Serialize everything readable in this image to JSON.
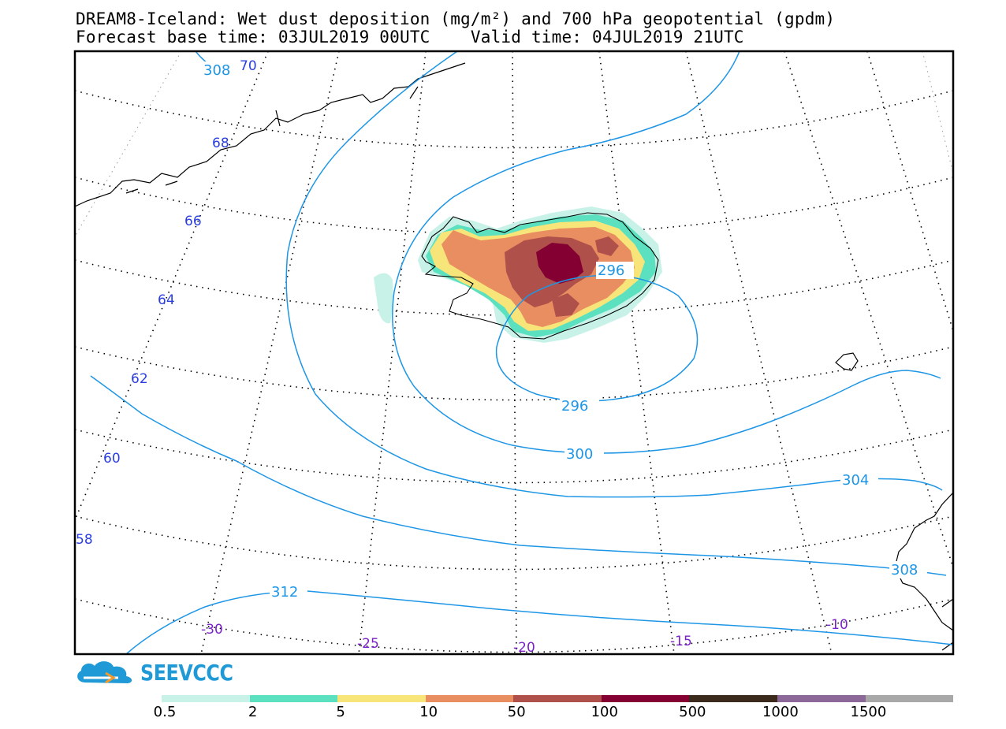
{
  "header": {
    "title_line1": "DREAM8-Iceland: Wet dust deposition (mg/m²) and 700 hPa geopotential (gpdm)",
    "title_line2": "Forecast base time: 03JUL2019 00UTC    Valid time: 04JUL2019 21UTC"
  },
  "map": {
    "geopotential_contour_color": "#1e96e6",
    "contour_labels": [
      "308",
      "308",
      "304",
      "300",
      "296",
      "296",
      "312"
    ],
    "latitude_labels": [
      "70",
      "68",
      "66",
      "64",
      "62",
      "60",
      "58"
    ],
    "longitude_labels": [
      "-30",
      "-25",
      "-20",
      "-15",
      "-10"
    ],
    "latitude_label_color": "#2b3fe0",
    "longitude_label_color": "#7b22c8"
  },
  "logo": {
    "text": "SEEVCCC",
    "icon": "cloud-logo-icon",
    "color": "#1f9ad6"
  },
  "colorbar": {
    "colors": [
      "#c8f2e8",
      "#5be0c0",
      "#f7e57a",
      "#e88e60",
      "#b0504a",
      "#840033",
      "#3c2a1c",
      "#8c6898",
      "#a8a8a8"
    ],
    "labels": [
      "0.5",
      "2",
      "5",
      "10",
      "50",
      "100",
      "500",
      "1000",
      "1500"
    ]
  }
}
